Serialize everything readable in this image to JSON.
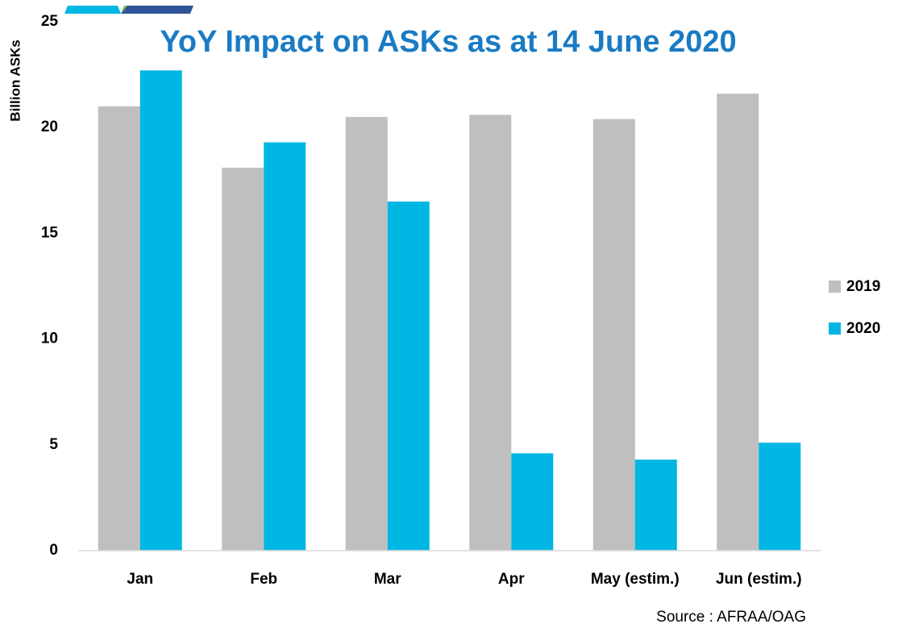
{
  "chart_data": {
    "type": "bar",
    "title": "YoY Impact on ASKs as at 14 June 2020",
    "y_label": "Billion ASKs",
    "source": "Source : AFRAA/OAG",
    "categories": [
      "Jan",
      "Feb",
      "Mar",
      "Apr",
      "May (estim.)",
      "Jun (estim.)"
    ],
    "series": [
      {
        "name": "2019",
        "color": "#bfbfbf",
        "values": [
          21.0,
          18.1,
          20.5,
          20.6,
          20.4,
          21.6
        ]
      },
      {
        "name": "2020",
        "color": "#00b7e3",
        "values": [
          22.7,
          19.3,
          16.5,
          4.6,
          4.3,
          5.1
        ]
      }
    ],
    "ylim": [
      0,
      25
    ],
    "yticks": [
      0,
      5,
      10,
      15,
      20,
      25
    ],
    "grid": false,
    "legend": "right"
  }
}
